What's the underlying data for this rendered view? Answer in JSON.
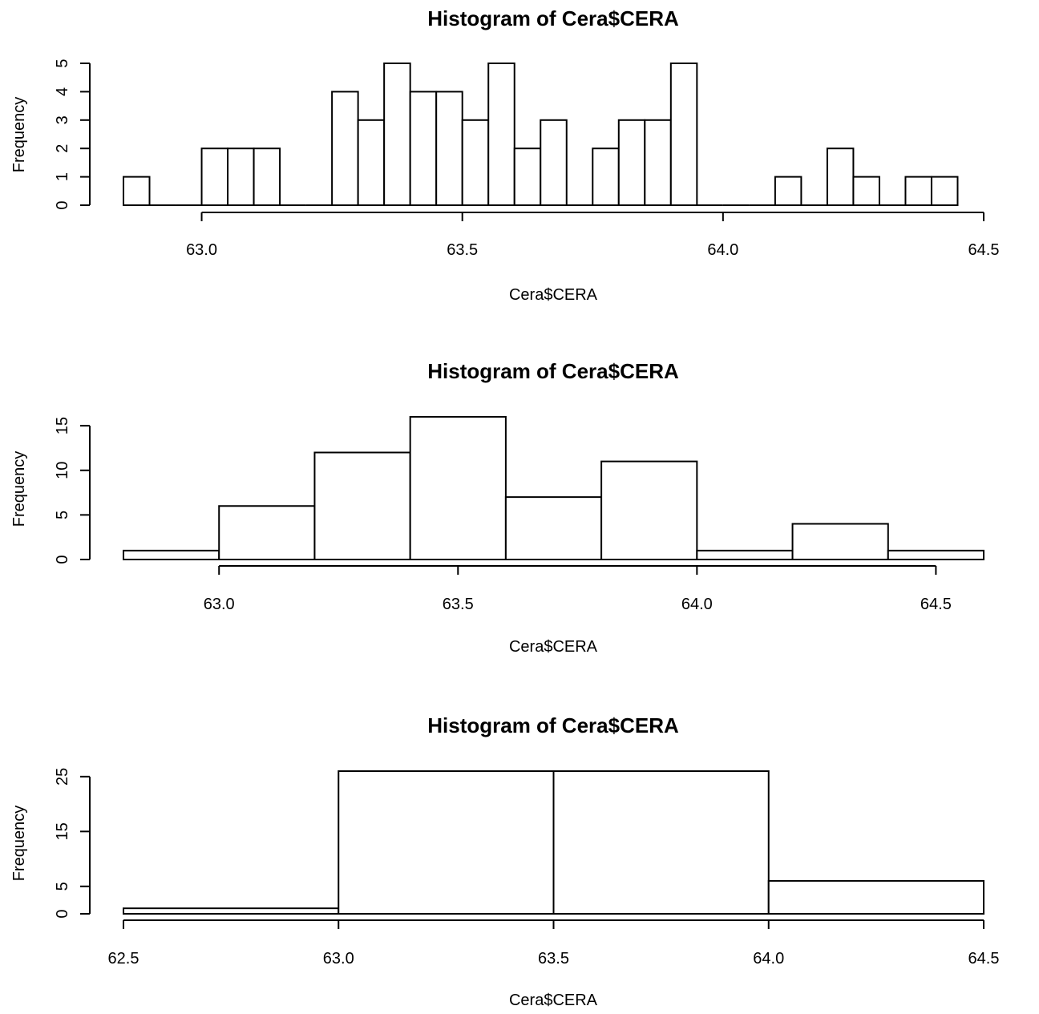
{
  "chart_data": [
    {
      "type": "bar",
      "title": "Histogram of Cera$CERA",
      "xlabel": "Cera$CERA",
      "ylabel": "Frequency",
      "x_ticks": [
        "63.0",
        "63.5",
        "64.0",
        "64.5"
      ],
      "x_tick_values": [
        63.0,
        63.5,
        64.0,
        64.5
      ],
      "y_ticks": [
        "0",
        "1",
        "2",
        "3",
        "4",
        "5"
      ],
      "y_tick_values": [
        0,
        1,
        2,
        3,
        4,
        5
      ],
      "bin_width": 0.05,
      "bin_start": 62.85,
      "values": [
        1,
        0,
        0,
        2,
        2,
        2,
        0,
        0,
        4,
        3,
        5,
        4,
        4,
        3,
        5,
        2,
        3,
        0,
        2,
        3,
        3,
        5,
        0,
        0,
        0,
        1,
        0,
        2,
        1,
        0,
        1,
        1
      ],
      "xlim": [
        62.85,
        64.5
      ],
      "ylim": [
        0,
        5
      ]
    },
    {
      "type": "bar",
      "title": "Histogram of Cera$CERA",
      "xlabel": "Cera$CERA",
      "ylabel": "Frequency",
      "x_ticks": [
        "63.0",
        "63.5",
        "64.0",
        "64.5"
      ],
      "x_tick_values": [
        63.0,
        63.5,
        64.0,
        64.5
      ],
      "y_ticks": [
        "0",
        "5",
        "10",
        "15"
      ],
      "y_tick_values": [
        0,
        5,
        10,
        15
      ],
      "bin_width": 0.2,
      "bin_start": 62.8,
      "values": [
        1,
        6,
        12,
        16,
        7,
        11,
        1,
        4,
        1
      ],
      "xlim": [
        62.8,
        64.6
      ],
      "ylim": [
        0,
        16
      ]
    },
    {
      "type": "bar",
      "title": "Histogram of Cera$CERA",
      "xlabel": "Cera$CERA",
      "ylabel": "Frequency",
      "x_ticks": [
        "62.5",
        "63.0",
        "63.5",
        "64.0",
        "64.5"
      ],
      "x_tick_values": [
        62.5,
        63.0,
        63.5,
        64.0,
        64.5
      ],
      "y_ticks": [
        "0",
        "5",
        "15",
        "25"
      ],
      "y_tick_values": [
        0,
        5,
        15,
        25
      ],
      "bin_width": 0.5,
      "bin_start": 62.5,
      "values": [
        1,
        26,
        26,
        6
      ],
      "xlim": [
        62.5,
        64.5
      ],
      "ylim": [
        0,
        26
      ]
    }
  ]
}
